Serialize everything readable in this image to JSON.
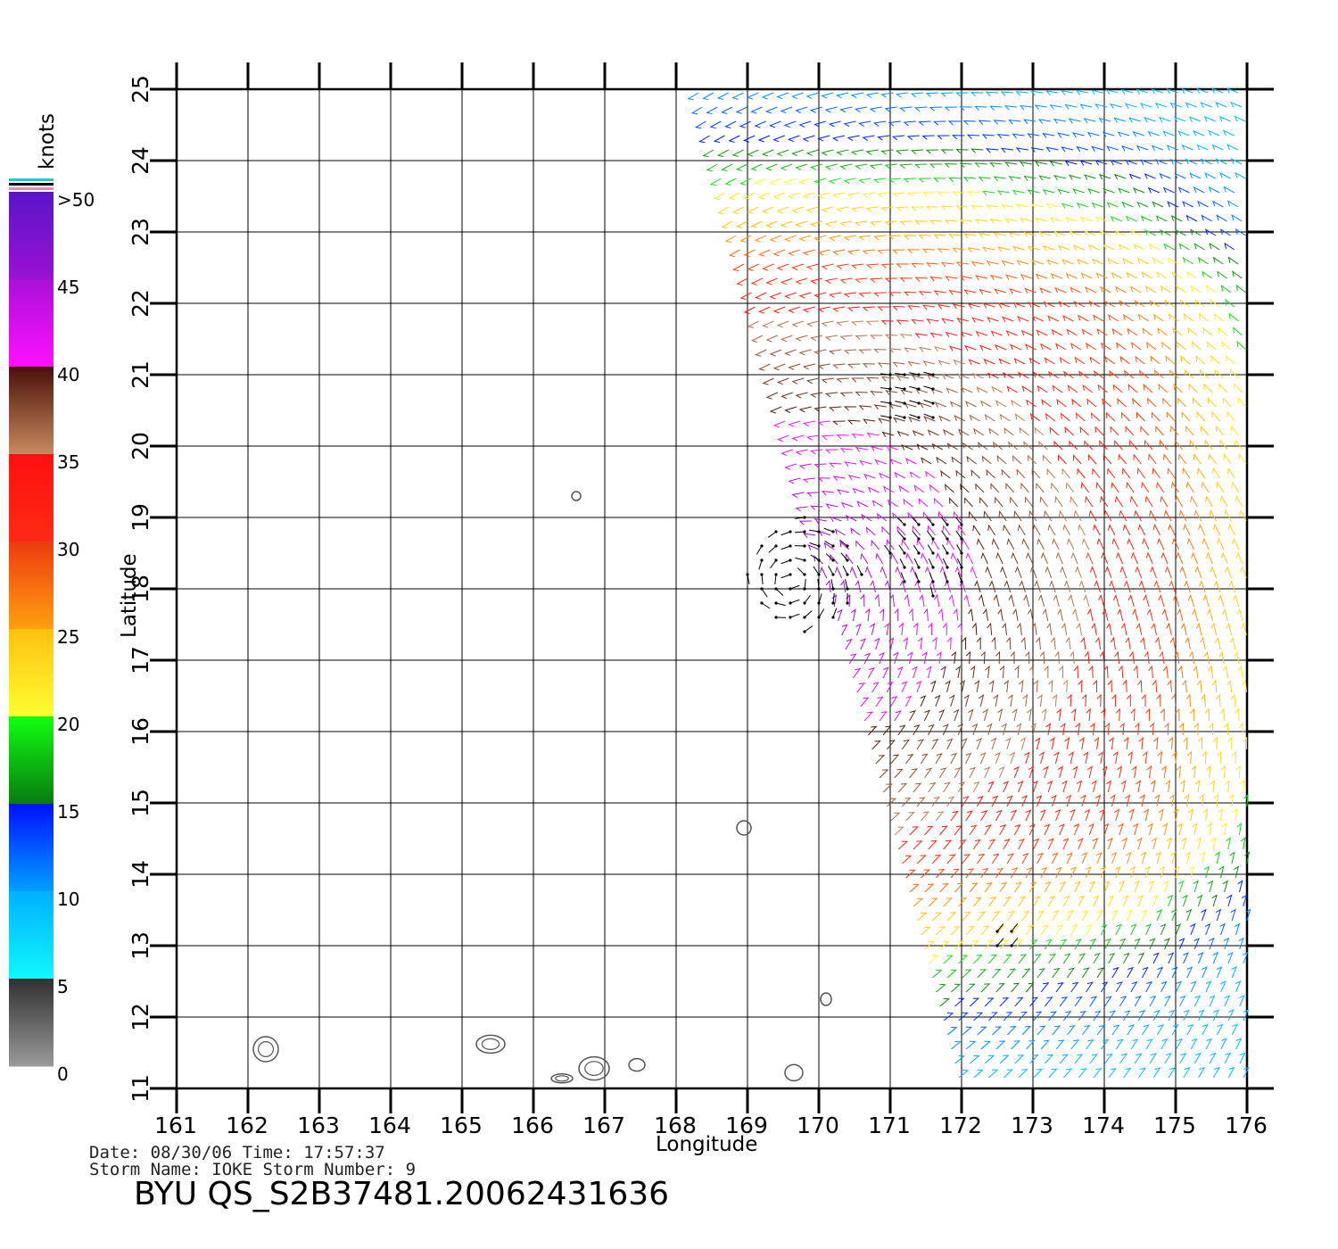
{
  "legend": {
    "unit_label": "knots",
    "ticks": [
      ">50",
      "45",
      "40",
      "35",
      "30",
      "25",
      "20",
      "15",
      "10",
      "5",
      "0"
    ],
    "bands": [
      {
        "top": "#5a14c8",
        "bottom": "#9a12d2"
      },
      {
        "top": "#aa10d8",
        "bottom": "#ff10ff"
      },
      {
        "top": "#4a1008",
        "bottom": "#c88a60"
      },
      {
        "top": "#ff1010",
        "bottom": "#ff2a14"
      },
      {
        "top": "#ee3a10",
        "bottom": "#ffa010"
      },
      {
        "top": "#ffc010",
        "bottom": "#ffff30"
      },
      {
        "top": "#10ff10",
        "bottom": "#087a10"
      },
      {
        "top": "#0010ff",
        "bottom": "#00a0ff"
      },
      {
        "top": "#00b0ff",
        "bottom": "#10f8ff"
      },
      {
        "top": "#303030",
        "bottom": "#9a9a9a"
      }
    ]
  },
  "axes": {
    "x_label": "Longitude",
    "y_label": "Latitude",
    "x_ticks": [
      "161",
      "162",
      "163",
      "164",
      "165",
      "166",
      "167",
      "168",
      "169",
      "170",
      "171",
      "172",
      "173",
      "174",
      "175",
      "176"
    ],
    "y_ticks": [
      "11",
      "12",
      "13",
      "14",
      "15",
      "16",
      "17",
      "18",
      "19",
      "20",
      "21",
      "22",
      "23",
      "24",
      "25"
    ],
    "x_range": [
      161,
      176
    ],
    "y_range": [
      11,
      25
    ]
  },
  "info": {
    "line1": "Date: 08/30/06   Time: 17:57:37",
    "line2": "Storm Name: IOKE   Storm Number: 9"
  },
  "title": "BYU QS_S2B37481.20062431636",
  "chart_data": {
    "type": "wind-vector-map",
    "title": "BYU QS_S2B37481.20062431636",
    "xlabel": "Longitude",
    "ylabel": "Latitude",
    "xlim": [
      161,
      176
    ],
    "ylim": [
      11,
      25
    ],
    "colorbar": {
      "label": "knots",
      "range": [
        0,
        50
      ],
      "ticks": [
        0,
        5,
        10,
        15,
        20,
        25,
        30,
        35,
        40,
        45,
        50
      ]
    },
    "swath": {
      "west_edge": [
        [
          168.3,
          25
        ],
        [
          172.0,
          11
        ]
      ],
      "east_edge_lon": 176
    },
    "islands": [
      {
        "name": "island-1",
        "lon": 162.25,
        "lat": 11.55
      },
      {
        "name": "island-2",
        "lon": 165.4,
        "lat": 11.62
      },
      {
        "name": "island-3",
        "lon": 166.4,
        "lat": 11.14
      },
      {
        "name": "island-4",
        "lon": 166.85,
        "lat": 11.28
      },
      {
        "name": "island-5",
        "lon": 167.45,
        "lat": 11.33
      },
      {
        "name": "island-6",
        "lon": 169.65,
        "lat": 11.22
      },
      {
        "name": "island-7",
        "lon": 170.1,
        "lat": 12.25
      },
      {
        "name": "island-8",
        "lon": 168.95,
        "lat": 14.65
      },
      {
        "name": "island-9",
        "lon": 166.6,
        "lat": 19.3
      }
    ]
  }
}
